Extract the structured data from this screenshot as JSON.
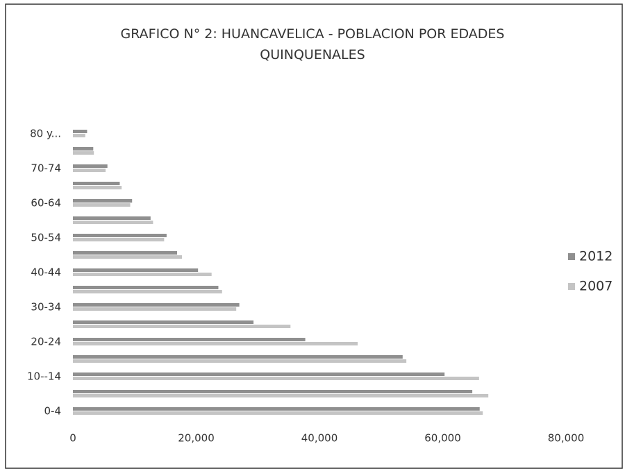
{
  "chart_data": {
    "type": "barh",
    "title": "GRAFICO N° 2: HUANCAVELICA - POBLACION POR EDADES QUINQUENALES",
    "categories": [
      "0-4",
      null,
      "10--14",
      null,
      "20-24",
      null,
      "30-34",
      null,
      "40-44",
      null,
      "50-54",
      null,
      "60-64",
      null,
      "70-74",
      null,
      "80 y..."
    ],
    "series": [
      {
        "name": "2012",
        "color": "#8f8f8f",
        "values": [
          66000,
          64800,
          60300,
          53500,
          37700,
          29300,
          27000,
          23600,
          20300,
          16900,
          15200,
          12600,
          9600,
          7600,
          5600,
          3300,
          2300
        ]
      },
      {
        "name": "2007",
        "color": "#c4c4c4",
        "values": [
          66500,
          67400,
          65900,
          54100,
          46200,
          35300,
          26500,
          24200,
          22500,
          17700,
          14800,
          13000,
          9300,
          7900,
          5300,
          3400,
          2000
        ]
      }
    ],
    "xlim": [
      0,
      80000
    ],
    "xticks": [
      0,
      {
        "value": 20000,
        "label": "20,000"
      },
      {
        "value": 40000,
        "label": "40,000"
      },
      {
        "value": 60000,
        "label": "60,000"
      },
      {
        "value": 80000,
        "label": "80,000"
      }
    ],
    "grid": false,
    "legend": "right"
  }
}
